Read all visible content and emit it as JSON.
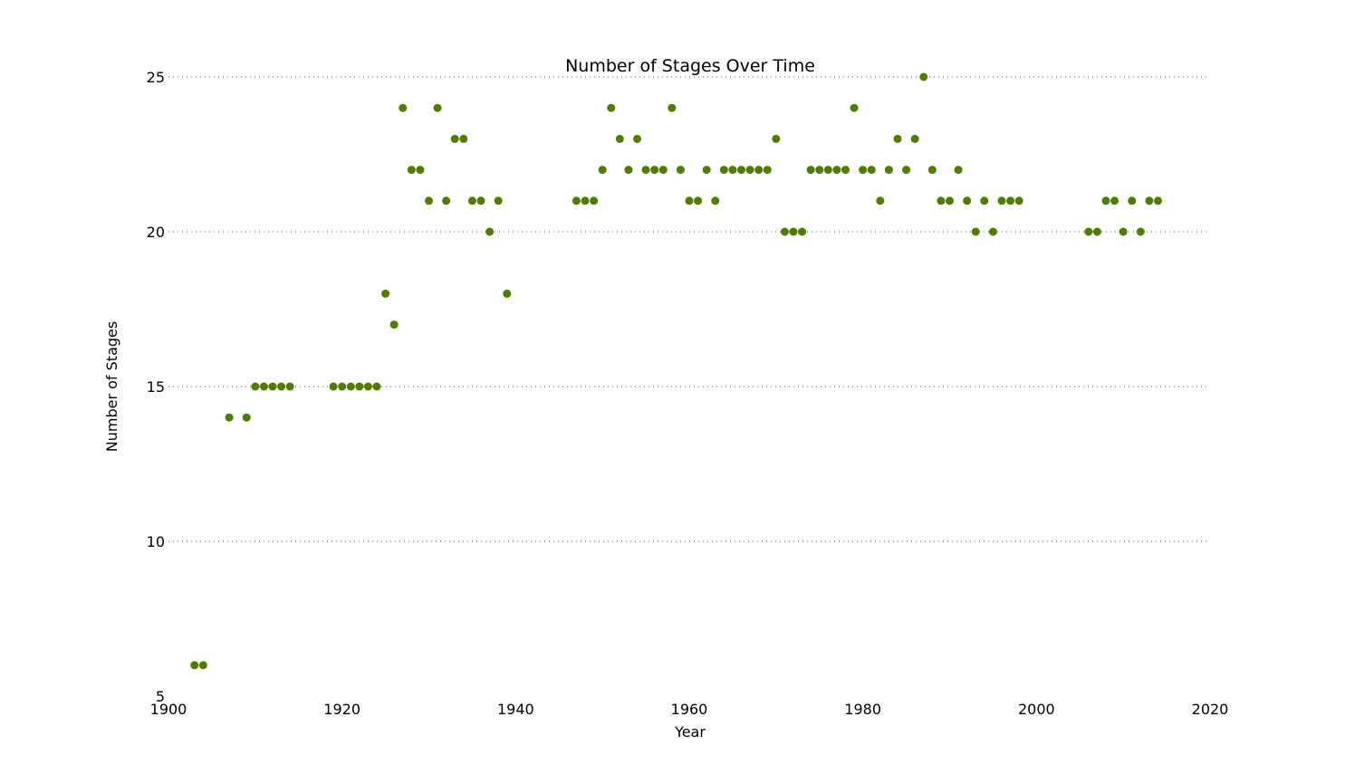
{
  "chart_data": {
    "type": "scatter",
    "title": "Number of Stages Over Time",
    "xlabel": "Year",
    "ylabel": "Number of Stages",
    "xlim": [
      1900,
      2020
    ],
    "ylim": [
      5,
      25
    ],
    "xticks": [
      "1900",
      "1920",
      "1940",
      "1960",
      "1980",
      "2000",
      "2020"
    ],
    "yticks": [
      "5",
      "10",
      "15",
      "20",
      "25"
    ],
    "grid": "horizontal dotted",
    "marker_color": "#4f7d00",
    "points": [
      {
        "x": 1903,
        "y": 6
      },
      {
        "x": 1904,
        "y": 6
      },
      {
        "x": 1907,
        "y": 14
      },
      {
        "x": 1909,
        "y": 14
      },
      {
        "x": 1910,
        "y": 15
      },
      {
        "x": 1911,
        "y": 15
      },
      {
        "x": 1912,
        "y": 15
      },
      {
        "x": 1913,
        "y": 15
      },
      {
        "x": 1914,
        "y": 15
      },
      {
        "x": 1919,
        "y": 15
      },
      {
        "x": 1920,
        "y": 15
      },
      {
        "x": 1921,
        "y": 15
      },
      {
        "x": 1922,
        "y": 15
      },
      {
        "x": 1923,
        "y": 15
      },
      {
        "x": 1924,
        "y": 15
      },
      {
        "x": 1925,
        "y": 18
      },
      {
        "x": 1926,
        "y": 17
      },
      {
        "x": 1927,
        "y": 24
      },
      {
        "x": 1928,
        "y": 22
      },
      {
        "x": 1929,
        "y": 22
      },
      {
        "x": 1930,
        "y": 21
      },
      {
        "x": 1931,
        "y": 24
      },
      {
        "x": 1932,
        "y": 21
      },
      {
        "x": 1933,
        "y": 23
      },
      {
        "x": 1934,
        "y": 23
      },
      {
        "x": 1935,
        "y": 21
      },
      {
        "x": 1936,
        "y": 21
      },
      {
        "x": 1937,
        "y": 20
      },
      {
        "x": 1938,
        "y": 21
      },
      {
        "x": 1939,
        "y": 18
      },
      {
        "x": 1947,
        "y": 21
      },
      {
        "x": 1948,
        "y": 21
      },
      {
        "x": 1949,
        "y": 21
      },
      {
        "x": 1950,
        "y": 22
      },
      {
        "x": 1951,
        "y": 24
      },
      {
        "x": 1952,
        "y": 23
      },
      {
        "x": 1953,
        "y": 22
      },
      {
        "x": 1954,
        "y": 23
      },
      {
        "x": 1955,
        "y": 22
      },
      {
        "x": 1956,
        "y": 22
      },
      {
        "x": 1957,
        "y": 22
      },
      {
        "x": 1958,
        "y": 24
      },
      {
        "x": 1959,
        "y": 22
      },
      {
        "x": 1960,
        "y": 21
      },
      {
        "x": 1961,
        "y": 21
      },
      {
        "x": 1962,
        "y": 22
      },
      {
        "x": 1963,
        "y": 21
      },
      {
        "x": 1964,
        "y": 22
      },
      {
        "x": 1965,
        "y": 22
      },
      {
        "x": 1966,
        "y": 22
      },
      {
        "x": 1967,
        "y": 22
      },
      {
        "x": 1968,
        "y": 22
      },
      {
        "x": 1969,
        "y": 22
      },
      {
        "x": 1970,
        "y": 23
      },
      {
        "x": 1971,
        "y": 20
      },
      {
        "x": 1972,
        "y": 20
      },
      {
        "x": 1973,
        "y": 20
      },
      {
        "x": 1974,
        "y": 22
      },
      {
        "x": 1975,
        "y": 22
      },
      {
        "x": 1976,
        "y": 22
      },
      {
        "x": 1977,
        "y": 22
      },
      {
        "x": 1978,
        "y": 22
      },
      {
        "x": 1979,
        "y": 24
      },
      {
        "x": 1980,
        "y": 22
      },
      {
        "x": 1981,
        "y": 22
      },
      {
        "x": 1982,
        "y": 21
      },
      {
        "x": 1983,
        "y": 22
      },
      {
        "x": 1984,
        "y": 23
      },
      {
        "x": 1985,
        "y": 22
      },
      {
        "x": 1986,
        "y": 23
      },
      {
        "x": 1987,
        "y": 25
      },
      {
        "x": 1988,
        "y": 22
      },
      {
        "x": 1989,
        "y": 21
      },
      {
        "x": 1990,
        "y": 21
      },
      {
        "x": 1991,
        "y": 22
      },
      {
        "x": 1992,
        "y": 21
      },
      {
        "x": 1993,
        "y": 20
      },
      {
        "x": 1994,
        "y": 21
      },
      {
        "x": 1995,
        "y": 20
      },
      {
        "x": 1996,
        "y": 21
      },
      {
        "x": 1997,
        "y": 21
      },
      {
        "x": 1998,
        "y": 21
      },
      {
        "x": 2006,
        "y": 20
      },
      {
        "x": 2007,
        "y": 20
      },
      {
        "x": 2008,
        "y": 21
      },
      {
        "x": 2009,
        "y": 21
      },
      {
        "x": 2010,
        "y": 20
      },
      {
        "x": 2011,
        "y": 21
      },
      {
        "x": 2012,
        "y": 20
      },
      {
        "x": 2013,
        "y": 21
      },
      {
        "x": 2014,
        "y": 21
      }
    ]
  }
}
